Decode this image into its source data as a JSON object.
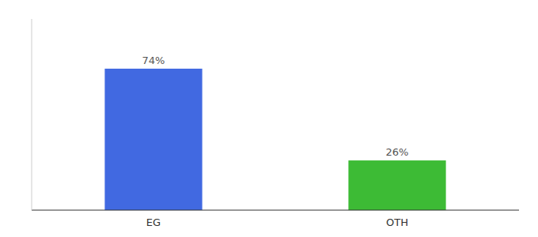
{
  "chart_data": {
    "type": "bar",
    "categories": [
      "EG",
      "OTH"
    ],
    "values": [
      74,
      26
    ],
    "value_labels": [
      "74%",
      "26%"
    ],
    "colors": [
      "#4169e1",
      "#3dbb35"
    ],
    "ylim": [
      0,
      100
    ],
    "data_labels": true,
    "grid": false,
    "tick_labels": "x"
  }
}
